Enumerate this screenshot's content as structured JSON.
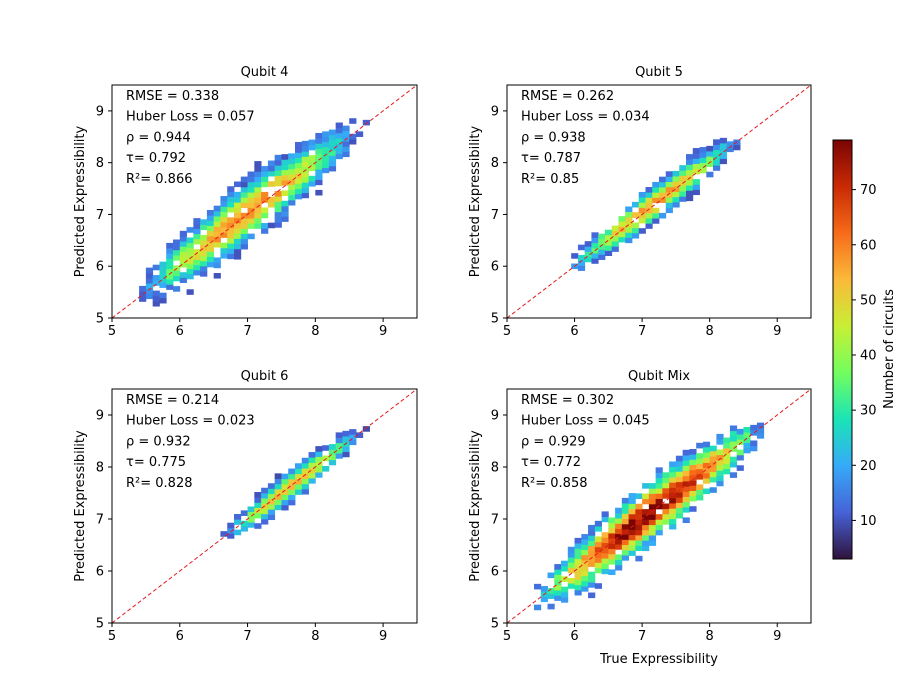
{
  "colors": {
    "identity_line": "#e31a1c",
    "axes": "#000000",
    "colormap": [
      "#30123b",
      "#4662d7",
      "#36aaf9",
      "#1ae4b6",
      "#72fe5e",
      "#c8ef34",
      "#faba39",
      "#f66b19",
      "#ca2a04",
      "#7a0403"
    ]
  },
  "colorbar": {
    "label": "Number of circuits",
    "min": 3,
    "max": 79,
    "ticks": [
      10,
      20,
      30,
      40,
      50,
      60,
      70
    ]
  },
  "chart_data": [
    {
      "type": "heatmap",
      "title": "Qubit 4",
      "xlabel": "",
      "ylabel": "Predicted Expressibility",
      "xlim": [
        5,
        9.5
      ],
      "ylim": [
        5,
        9.5
      ],
      "xticks": [
        5,
        6,
        7,
        8,
        9
      ],
      "yticks": [
        5,
        6,
        7,
        8,
        9
      ],
      "reference_line": "y = x",
      "metrics": [
        "RMSE = 0.338",
        "Huber Loss = 0.057",
        "ρ = 0.944",
        "τ= 0.792",
        "R²= 0.866"
      ],
      "density": {
        "x_range": [
          5.3,
          8.7
        ],
        "center_intercept": 0.18,
        "center_slope": 0.98,
        "spread": 0.32,
        "peak_count": 60
      }
    },
    {
      "type": "heatmap",
      "title": "Qubit 5",
      "xlabel": "",
      "ylabel": "Predicted Expressibility",
      "xlim": [
        5,
        9.5
      ],
      "ylim": [
        5,
        9.5
      ],
      "xticks": [
        5,
        6,
        7,
        8,
        9
      ],
      "yticks": [
        5,
        6,
        7,
        8,
        9
      ],
      "reference_line": "y = x",
      "metrics": [
        "RMSE = 0.262",
        "Huber Loss = 0.034",
        "ρ = 0.938",
        "τ= 0.787",
        "R²= 0.85"
      ],
      "density": {
        "x_range": [
          5.85,
          8.5
        ],
        "center_intercept": 0.1,
        "center_slope": 0.99,
        "spread": 0.2,
        "peak_count": 58
      }
    },
    {
      "type": "heatmap",
      "title": "Qubit 6",
      "xlabel": "",
      "ylabel": "Predicted Expressibility",
      "xlim": [
        5,
        9.5
      ],
      "ylim": [
        5,
        9.5
      ],
      "xticks": [
        5,
        6,
        7,
        8,
        9
      ],
      "yticks": [
        5,
        6,
        7,
        8,
        9
      ],
      "reference_line": "y = x",
      "metrics": [
        "RMSE = 0.214",
        "Huber Loss = 0.023",
        "ρ = 0.932",
        "τ= 0.775",
        "R²= 0.828"
      ],
      "density": {
        "x_range": [
          6.6,
          8.7
        ],
        "center_intercept": 0.0,
        "center_slope": 1.0,
        "spread": 0.16,
        "peak_count": 55
      }
    },
    {
      "type": "heatmap",
      "title": "Qubit Mix",
      "xlabel": "True Expressibility",
      "ylabel": "Predicted Expressibility",
      "xlim": [
        5,
        9.5
      ],
      "ylim": [
        5,
        9.5
      ],
      "xticks": [
        5,
        6,
        7,
        8,
        9
      ],
      "yticks": [
        5,
        6,
        7,
        8,
        9
      ],
      "reference_line": "y = x",
      "metrics": [
        "RMSE = 0.302",
        "Huber Loss = 0.045",
        "ρ = 0.929",
        "τ= 0.772",
        "R²= 0.858"
      ],
      "density": {
        "x_range": [
          5.3,
          8.9
        ],
        "center_intercept": 0.0,
        "center_slope": 1.0,
        "spread": 0.32,
        "peak_count": 79
      }
    }
  ],
  "shared_xlabel": "True Expressibility"
}
